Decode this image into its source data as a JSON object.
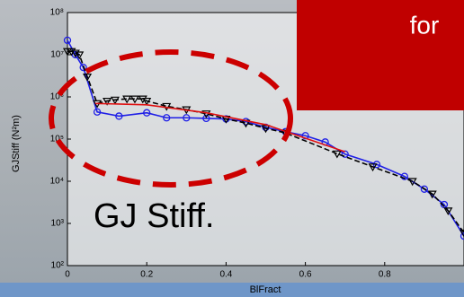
{
  "chart_data": {
    "type": "line",
    "x_label": "BlFract",
    "y_label": "GJStiff (N²m)",
    "log_y": true,
    "xlim": [
      0,
      1
    ],
    "xticks": [
      0,
      0.2,
      0.4,
      0.6,
      0.8
    ],
    "ylim": [
      100,
      100000000
    ],
    "yticks": [
      {
        "value": 100,
        "label": "10²"
      },
      {
        "value": 1000,
        "label": "10³"
      },
      {
        "value": 10000,
        "label": "10⁴"
      },
      {
        "value": 100000,
        "label": "10⁵"
      },
      {
        "value": 1000000,
        "label": "10⁶"
      },
      {
        "value": 10000000,
        "label": "10⁷"
      },
      {
        "value": 100000000,
        "label": "10⁸"
      }
    ],
    "series": [
      {
        "color": "#1f1fe6",
        "marker": "circle",
        "dash": false,
        "x": [
          0,
          0.02,
          0.04,
          0.075,
          0.13,
          0.2,
          0.25,
          0.3,
          0.35,
          0.4,
          0.45,
          0.5,
          0.55,
          0.6,
          0.65,
          0.7,
          0.78,
          0.85,
          0.9,
          0.95,
          1.0
        ],
        "values": [
          22000000,
          10000000,
          5000000,
          440000,
          350000,
          420000,
          320000,
          320000,
          310000,
          300000,
          260000,
          190000,
          150000,
          120000,
          85000,
          44000,
          25000,
          13000,
          6500,
          2800,
          500
        ]
      },
      {
        "color": "#000000",
        "marker": "triangle",
        "dash": true,
        "x": [
          0,
          0.01,
          0.02,
          0.03,
          0.05,
          0.075,
          0.1,
          0.12,
          0.15,
          0.17,
          0.19,
          0.2,
          0.25,
          0.3,
          0.35,
          0.4,
          0.45,
          0.5,
          0.55,
          0.68,
          0.77,
          0.87,
          0.92,
          0.96,
          1.0
        ],
        "values": [
          12000000,
          12000000,
          11000000,
          10000000,
          3000000,
          700000,
          800000,
          850000,
          900000,
          900000,
          900000,
          800000,
          600000,
          500000,
          400000,
          300000,
          240000,
          180000,
          140000,
          45000,
          22000,
          10000,
          5000,
          2000,
          600
        ]
      },
      {
        "color": "#e01010",
        "marker": "none",
        "dash": false,
        "x": [
          0.07,
          0.2,
          0.35,
          0.5,
          0.7
        ],
        "values": [
          700000,
          650000,
          420000,
          220000,
          50000
        ]
      }
    ],
    "annotations": [
      "for",
      "GJ Stiff."
    ]
  }
}
